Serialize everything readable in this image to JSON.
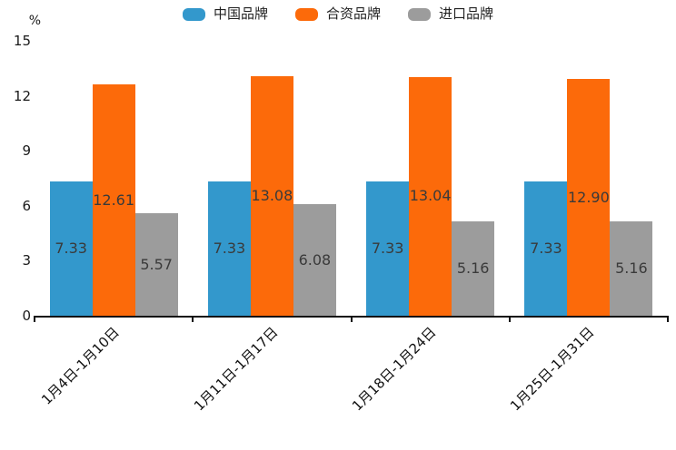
{
  "unit_label": "%",
  "legend": {
    "items": [
      {
        "label": "中国品牌",
        "color": "#3398CC"
      },
      {
        "label": "合资品牌",
        "color": "#FC6A0A"
      },
      {
        "label": "进口品牌",
        "color": "#9C9C9C"
      }
    ]
  },
  "chart_data": {
    "type": "bar",
    "title": "",
    "xlabel": "",
    "ylabel": "%",
    "categories": [
      "1月4日-1月10日",
      "1月11日-1月17日",
      "1月18日-1月24日",
      "1月25日-1月31日"
    ],
    "series": [
      {
        "name": "中国品牌",
        "color": "#3398CC",
        "values": [
          7.33,
          7.33,
          7.33,
          7.33
        ]
      },
      {
        "name": "合资品牌",
        "color": "#FC6A0A",
        "values": [
          12.61,
          13.08,
          13.04,
          12.9
        ]
      },
      {
        "name": "进口品牌",
        "color": "#9C9C9C",
        "values": [
          5.57,
          6.08,
          5.16,
          5.16
        ]
      }
    ],
    "ylim": [
      0,
      15
    ],
    "yticks": [
      0,
      3,
      6,
      9,
      12,
      15
    ],
    "grid": false,
    "legend_position": "top",
    "value_labels": true,
    "value_label_decimals": 2
  }
}
